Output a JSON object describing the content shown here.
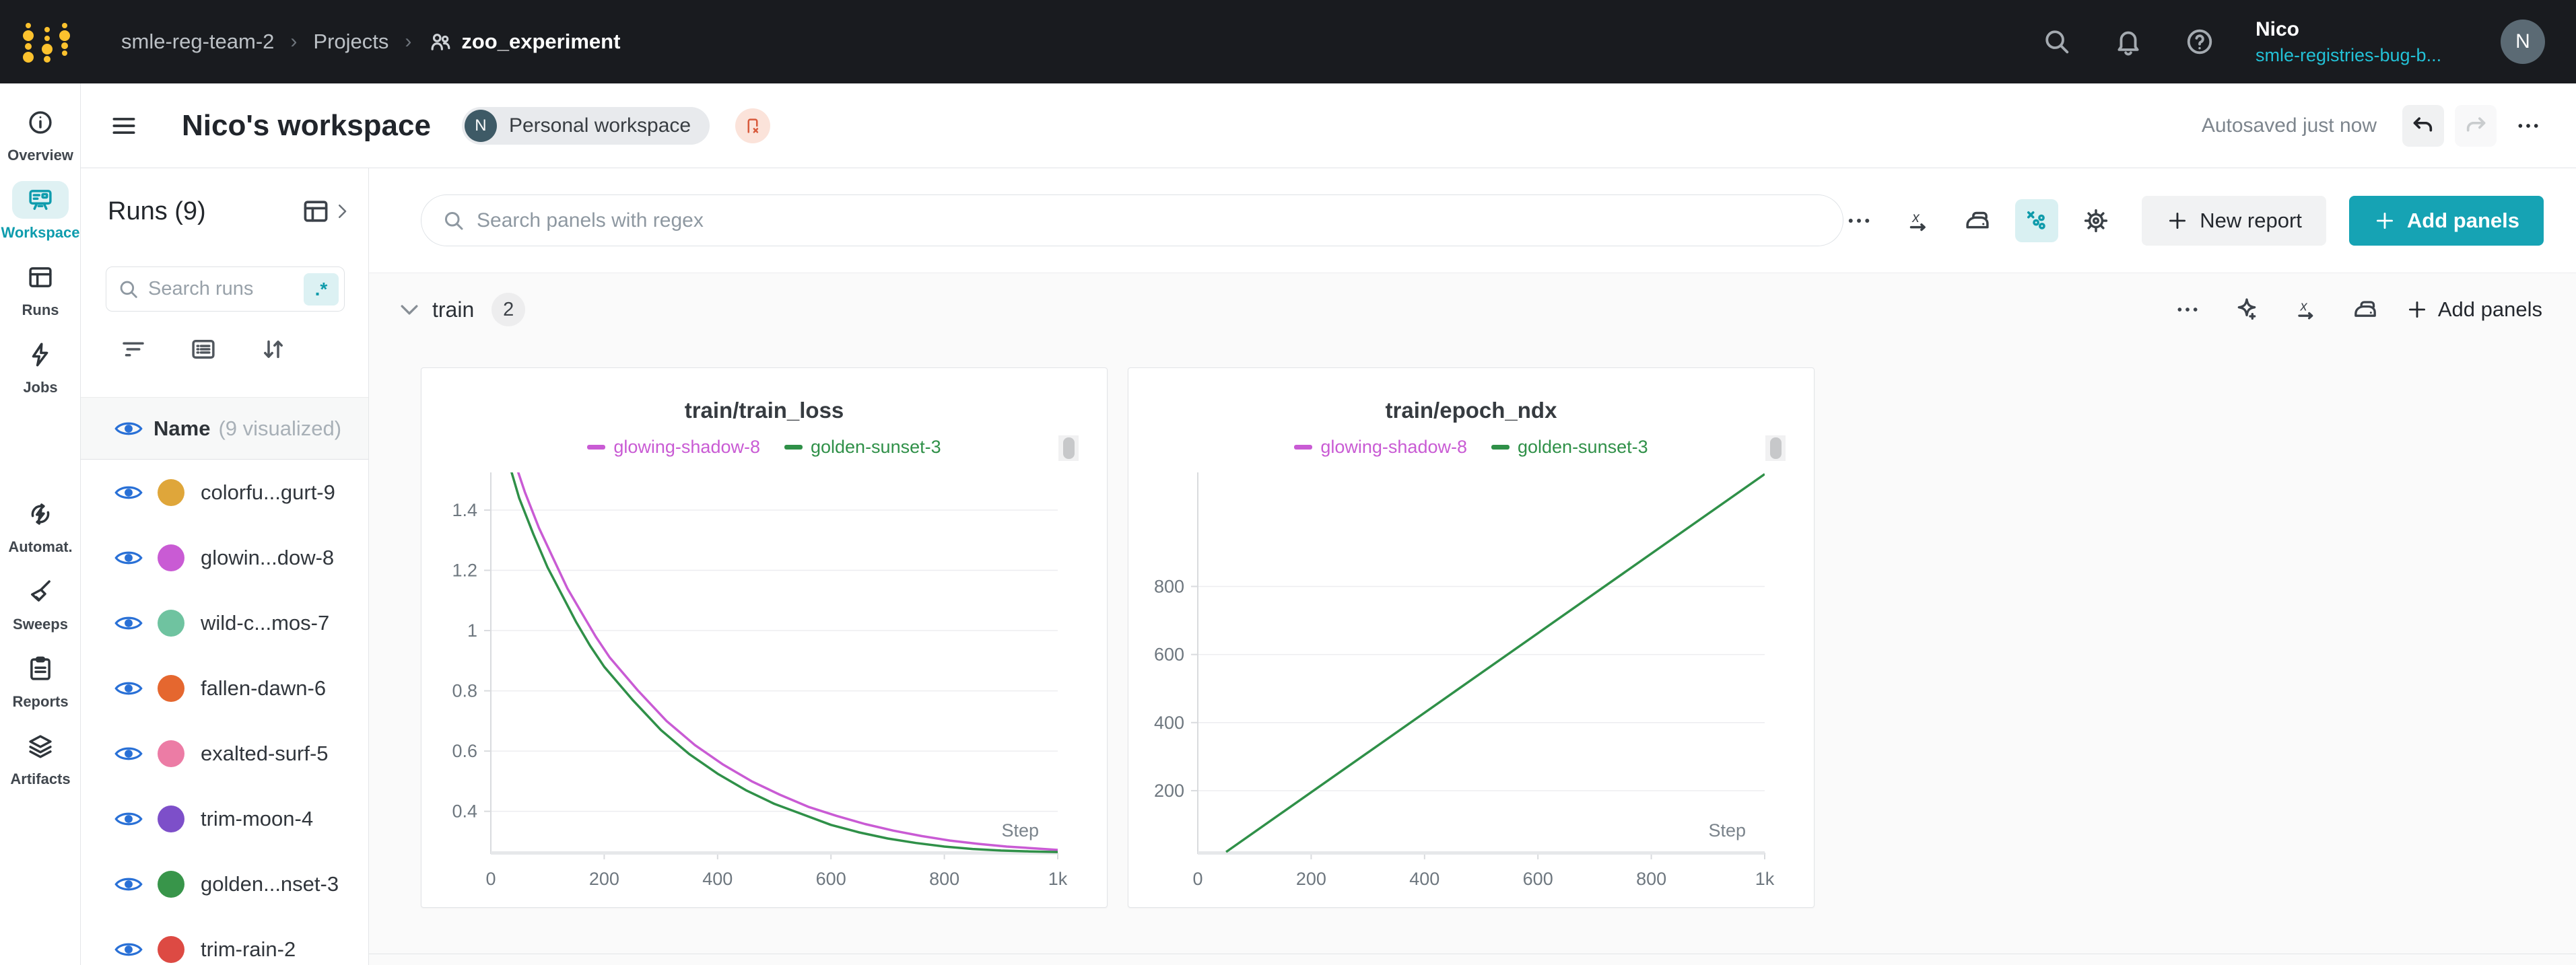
{
  "topbar": {
    "breadcrumb": {
      "team": "smle-reg-team-2",
      "separator": "›",
      "projects": "Projects",
      "project": "zoo_experiment"
    },
    "user": {
      "name": "Nico",
      "org": "smle-registries-bug-b...",
      "avatar_initial": "N"
    }
  },
  "header": {
    "title": "Nico's workspace",
    "workspace_badge": {
      "initial": "N",
      "label": "Personal workspace"
    },
    "autosave": "Autosaved just now"
  },
  "nav_rail": {
    "items": [
      {
        "id": "overview",
        "label": "Overview",
        "icon": "info-icon",
        "active": false,
        "group_gap": false
      },
      {
        "id": "workspace",
        "label": "Workspace",
        "icon": "workspace-board-icon",
        "active": true,
        "group_gap": false
      },
      {
        "id": "runs",
        "label": "Runs",
        "icon": "table-icon",
        "active": false,
        "group_gap": false
      },
      {
        "id": "jobs",
        "label": "Jobs",
        "icon": "lightning-icon",
        "active": false,
        "group_gap": false
      },
      {
        "id": "automations",
        "label": "Automat.",
        "icon": "automation-icon",
        "active": false,
        "group_gap": true
      },
      {
        "id": "sweeps",
        "label": "Sweeps",
        "icon": "broom-icon",
        "active": false,
        "group_gap": false
      },
      {
        "id": "reports",
        "label": "Reports",
        "icon": "clipboard-icon",
        "active": false,
        "group_gap": false
      },
      {
        "id": "artifacts",
        "label": "Artifacts",
        "icon": "layers-icon",
        "active": false,
        "group_gap": false
      }
    ]
  },
  "runs_panel": {
    "title": "Runs (9)",
    "search": {
      "placeholder": "Search runs",
      "regex_badge": ".*"
    },
    "list_header": {
      "name": "Name",
      "annotation": "(9 visualized)"
    },
    "runs": [
      {
        "display": "colorfu...gurt-9",
        "color": "#dfa63a"
      },
      {
        "display": "glowin...dow-8",
        "color": "#c95bd4"
      },
      {
        "display": "wild-c...mos-7",
        "color": "#6fc3a0"
      },
      {
        "display": "fallen-dawn-6",
        "color": "#e5672f"
      },
      {
        "display": "exalted-surf-5",
        "color": "#ec7ca5"
      },
      {
        "display": "trim-moon-4",
        "color": "#7d4fc9"
      },
      {
        "display": "golden...nset-3",
        "color": "#38954a"
      },
      {
        "display": "trim-rain-2",
        "color": "#dd4a43"
      }
    ]
  },
  "toolbar": {
    "search_placeholder": "Search panels with regex",
    "new_report": "New report",
    "add_panels": "Add panels"
  },
  "section": {
    "name": "train",
    "count": "2",
    "add_panels": "Add panels"
  },
  "chart_data": [
    {
      "type": "line",
      "title": "train/train_loss",
      "xlabel": "Step",
      "xlim": [
        0,
        1000
      ],
      "ylim": [
        0.263,
        1.525
      ],
      "grid": true,
      "legend_position": "top",
      "xticks": [
        {
          "v": 0,
          "label": "0"
        },
        {
          "v": 200,
          "label": "200"
        },
        {
          "v": 400,
          "label": "400"
        },
        {
          "v": 600,
          "label": "600"
        },
        {
          "v": 800,
          "label": "800"
        },
        {
          "v": 1000,
          "label": "1k"
        }
      ],
      "yticks": [
        {
          "v": 0.4,
          "label": "0.4"
        },
        {
          "v": 0.6,
          "label": "0.6"
        },
        {
          "v": 0.8,
          "label": "0.8"
        },
        {
          "v": 1,
          "label": "1"
        },
        {
          "v": 1.2,
          "label": "1.2"
        },
        {
          "v": 1.4,
          "label": "1.4"
        }
      ],
      "series": [
        {
          "name": "glowing-shadow-8",
          "color": "#c95bd4",
          "points": [
            [
              35,
              1.6
            ],
            [
              60,
              1.46
            ],
            [
              85,
              1.34
            ],
            [
              110,
              1.24
            ],
            [
              135,
              1.14
            ],
            [
              160,
              1.06
            ],
            [
              185,
              0.98
            ],
            [
              210,
              0.91
            ],
            [
              260,
              0.8
            ],
            [
              310,
              0.7
            ],
            [
              360,
              0.62
            ],
            [
              410,
              0.555
            ],
            [
              460,
              0.5
            ],
            [
              510,
              0.455
            ],
            [
              560,
              0.415
            ],
            [
              610,
              0.385
            ],
            [
              660,
              0.358
            ],
            [
              710,
              0.336
            ],
            [
              760,
              0.318
            ],
            [
              810,
              0.303
            ],
            [
              860,
              0.292
            ],
            [
              910,
              0.283
            ],
            [
              960,
              0.277
            ],
            [
              1000,
              0.272
            ]
          ]
        },
        {
          "name": "golden-sunset-3",
          "color": "#2f9048",
          "points": [
            [
              25,
              1.6
            ],
            [
              50,
              1.44
            ],
            [
              75,
              1.32
            ],
            [
              100,
              1.21
            ],
            [
              125,
              1.12
            ],
            [
              150,
              1.03
            ],
            [
              175,
              0.95
            ],
            [
              200,
              0.88
            ],
            [
              250,
              0.77
            ],
            [
              300,
              0.67
            ],
            [
              350,
              0.59
            ],
            [
              400,
              0.525
            ],
            [
              450,
              0.47
            ],
            [
              500,
              0.425
            ],
            [
              550,
              0.39
            ],
            [
              600,
              0.355
            ],
            [
              650,
              0.33
            ],
            [
              700,
              0.31
            ],
            [
              750,
              0.295
            ],
            [
              800,
              0.283
            ],
            [
              850,
              0.275
            ],
            [
              900,
              0.27
            ],
            [
              950,
              0.267
            ],
            [
              1000,
              0.265
            ]
          ]
        }
      ]
    },
    {
      "type": "line",
      "title": "train/epoch_ndx",
      "xlabel": "Step",
      "xlim": [
        0,
        1000
      ],
      "ylim": [
        18,
        1135
      ],
      "grid": true,
      "legend_position": "top",
      "xticks": [
        {
          "v": 0,
          "label": "0"
        },
        {
          "v": 200,
          "label": "200"
        },
        {
          "v": 400,
          "label": "400"
        },
        {
          "v": 600,
          "label": "600"
        },
        {
          "v": 800,
          "label": "800"
        },
        {
          "v": 1000,
          "label": "1k"
        }
      ],
      "yticks": [
        {
          "v": 200,
          "label": "200"
        },
        {
          "v": 400,
          "label": "400"
        },
        {
          "v": 600,
          "label": "600"
        },
        {
          "v": 800,
          "label": "800"
        }
      ],
      "series": [
        {
          "name": "glowing-shadow-8",
          "color": "#c95bd4",
          "points": []
        },
        {
          "name": "golden-sunset-3",
          "color": "#2f9048",
          "points": [
            [
              50,
              20
            ],
            [
              1000,
              1130
            ]
          ]
        }
      ]
    }
  ],
  "colors": {
    "accent_teal": "#16a3b4",
    "eye_blue": "#2970d6",
    "navbar_bg": "#191b1f",
    "logo_yellow": "#fcc22e",
    "flag_orange": "#d85a3c"
  }
}
